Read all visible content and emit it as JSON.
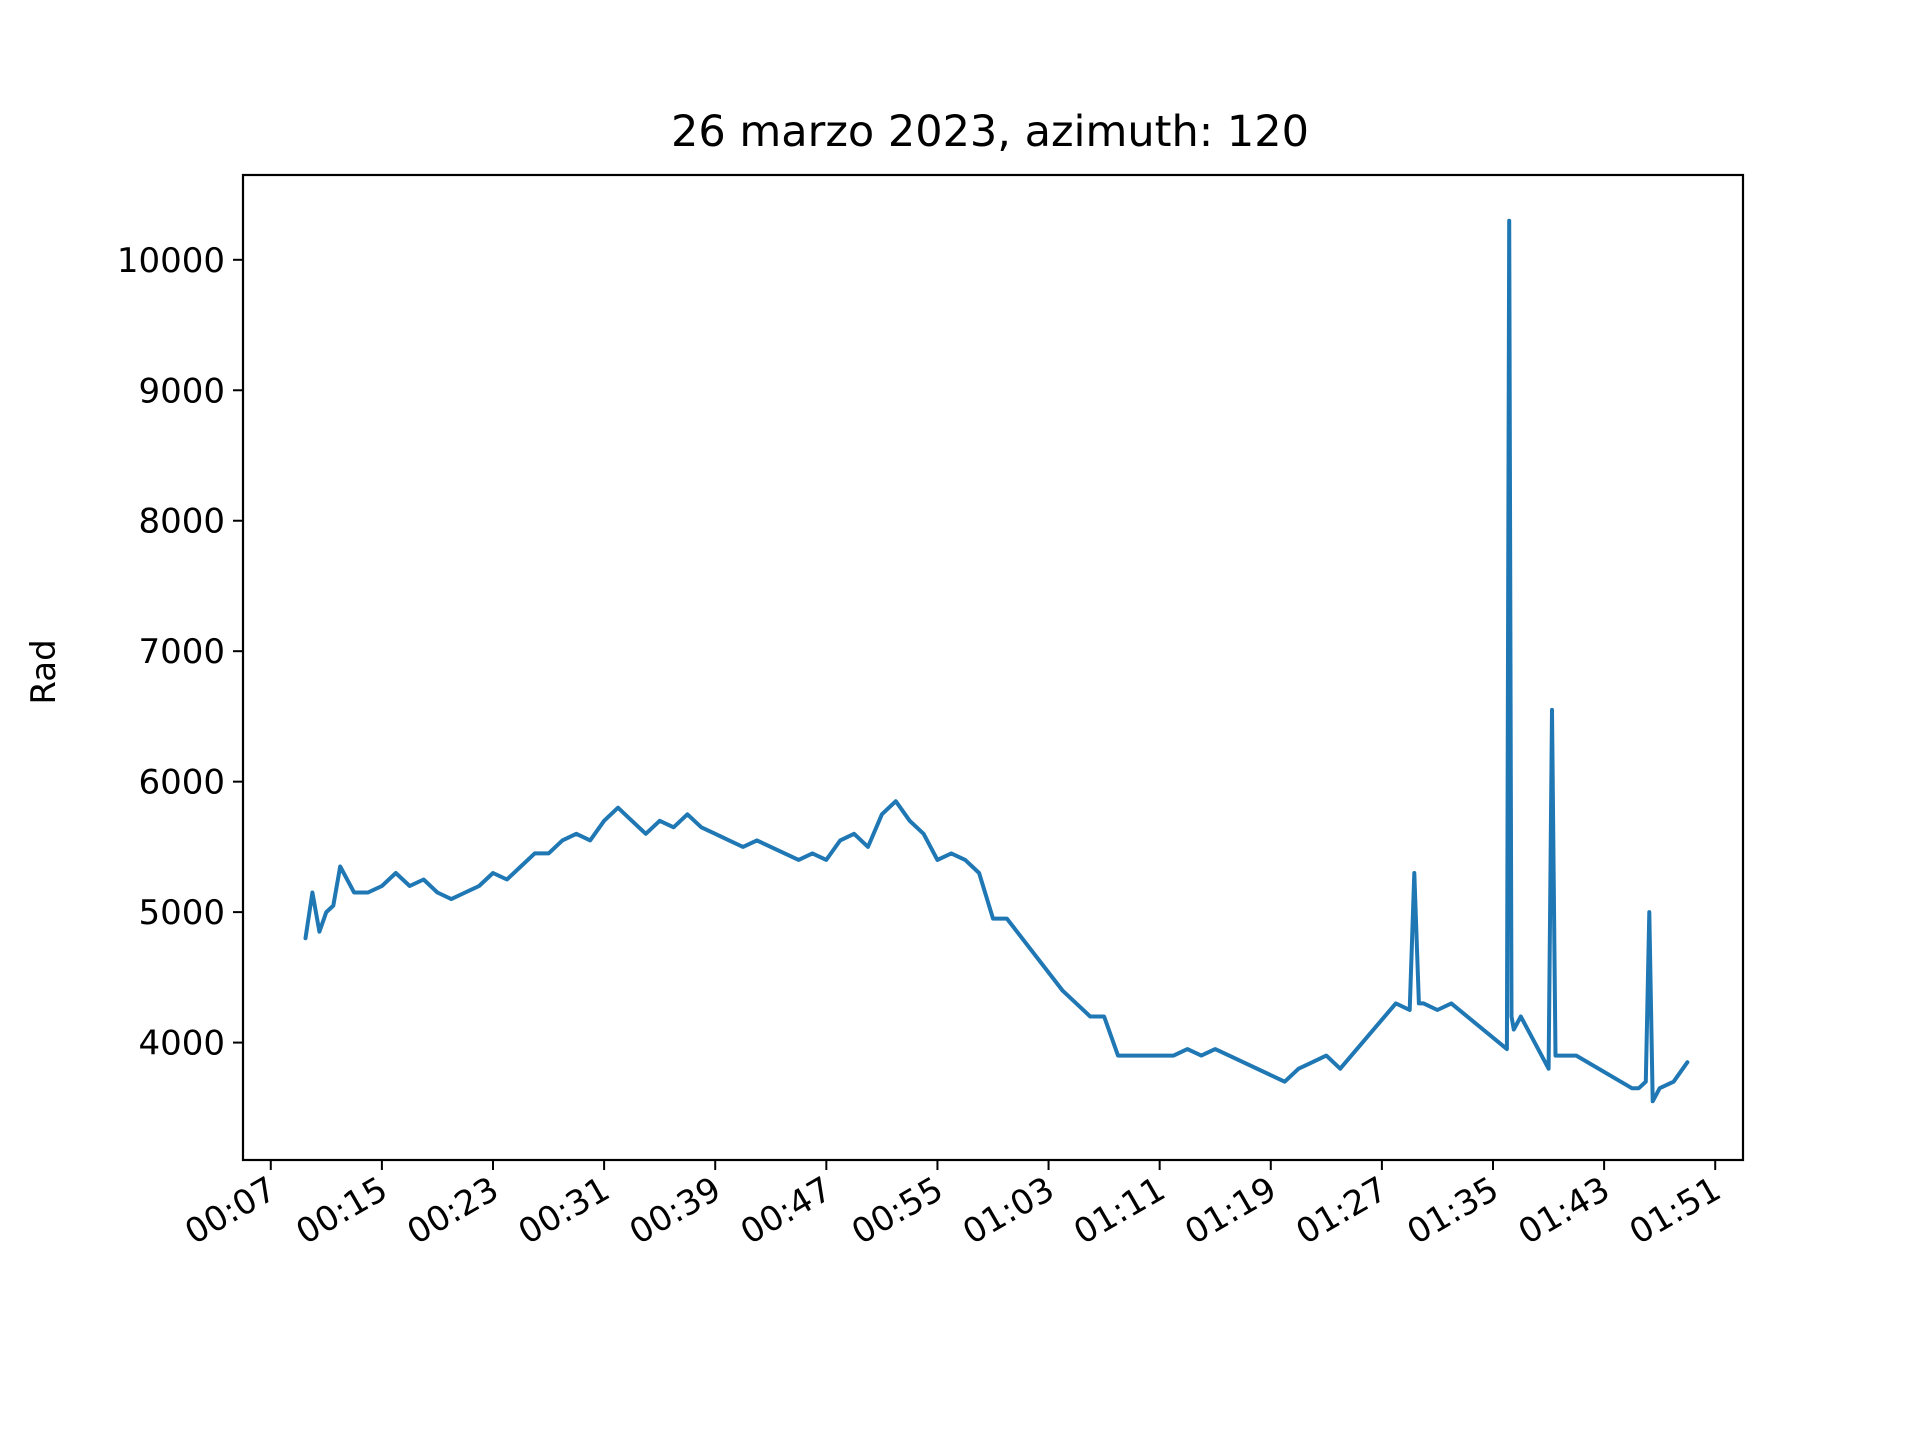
{
  "chart_data": {
    "type": "line",
    "title": "26 marzo 2023, azimuth: 120",
    "xlabel": "",
    "ylabel": "Rad",
    "color": "#1f77b4",
    "grid": false,
    "x_axis": "time (HH:MM)",
    "xlim": [
      "00:05",
      "01:53"
    ],
    "ylim": [
      3100,
      10650
    ],
    "x_ticks": [
      "00:07",
      "00:15",
      "00:23",
      "00:31",
      "00:39",
      "00:47",
      "00:55",
      "01:03",
      "01:11",
      "01:19",
      "01:27",
      "01:35",
      "01:43",
      "01:51"
    ],
    "y_ticks": [
      4000,
      5000,
      6000,
      7000,
      8000,
      9000,
      10000
    ],
    "series": [
      {
        "x": [
          "00:09:30",
          "00:10:00",
          "00:10:30",
          "00:11:00",
          "00:11:30",
          "00:12:00",
          "00:13:00",
          "00:14:00",
          "00:15:00",
          "00:16:00",
          "00:17:00",
          "00:18:00",
          "00:19:00",
          "00:20:00",
          "00:21:00",
          "00:22:00",
          "00:23:00",
          "00:24:00",
          "00:25:00",
          "00:26:00",
          "00:27:00",
          "00:28:00",
          "00:29:00",
          "00:30:00",
          "00:31:00",
          "00:32:00",
          "00:33:00",
          "00:34:00",
          "00:35:00",
          "00:36:00",
          "00:37:00",
          "00:38:00",
          "00:39:00",
          "00:40:00",
          "00:41:00",
          "00:42:00",
          "00:43:00",
          "00:44:00",
          "00:45:00",
          "00:46:00",
          "00:47:00",
          "00:48:00",
          "00:49:00",
          "00:50:00",
          "00:51:00",
          "00:52:00",
          "00:53:00",
          "00:54:00",
          "00:55:00",
          "00:56:00",
          "00:57:00",
          "00:58:00",
          "00:59:00",
          "01:00:00",
          "01:04:00",
          "01:05:00",
          "01:06:00",
          "01:07:00",
          "01:08:00",
          "01:12:00",
          "01:13:00",
          "01:14:00",
          "01:15:00",
          "01:16:00",
          "01:20:00",
          "01:21:00",
          "01:22:00",
          "01:23:00",
          "01:24:00",
          "01:28:00",
          "01:29:00",
          "01:29:20",
          "01:29:40",
          "01:30:00",
          "01:31:00",
          "01:32:00",
          "01:36:00",
          "01:36:10",
          "01:36:20",
          "01:36:30",
          "01:37:00",
          "01:38:00",
          "01:39:00",
          "01:39:15",
          "01:39:30",
          "01:40:00",
          "01:41:00",
          "01:45:00",
          "01:45:30",
          "01:46:00",
          "01:46:15",
          "01:46:30",
          "01:47:00",
          "01:48:00",
          "01:49:00"
        ],
        "y": [
          4800,
          5150,
          4850,
          5000,
          5050,
          5350,
          5150,
          5150,
          5200,
          5300,
          5200,
          5250,
          5150,
          5100,
          5150,
          5200,
          5300,
          5250,
          5350,
          5450,
          5450,
          5550,
          5600,
          5550,
          5700,
          5800,
          5700,
          5600,
          5700,
          5650,
          5750,
          5650,
          5600,
          5550,
          5500,
          5550,
          5500,
          5450,
          5400,
          5450,
          5400,
          5550,
          5600,
          5500,
          5750,
          5850,
          5700,
          5600,
          5400,
          5450,
          5400,
          5300,
          4950,
          4950,
          4400,
          4300,
          4200,
          4200,
          3900,
          3900,
          3950,
          3900,
          3950,
          3900,
          3700,
          3800,
          3850,
          3900,
          3800,
          4300,
          4250,
          5300,
          4300,
          4300,
          4250,
          4300,
          3950,
          10300,
          4200,
          4100,
          4200,
          4000,
          3800,
          6550,
          3900,
          3900,
          3900,
          3650,
          3650,
          3700,
          5000,
          3550,
          3650,
          3700,
          3850
        ]
      }
    ]
  }
}
